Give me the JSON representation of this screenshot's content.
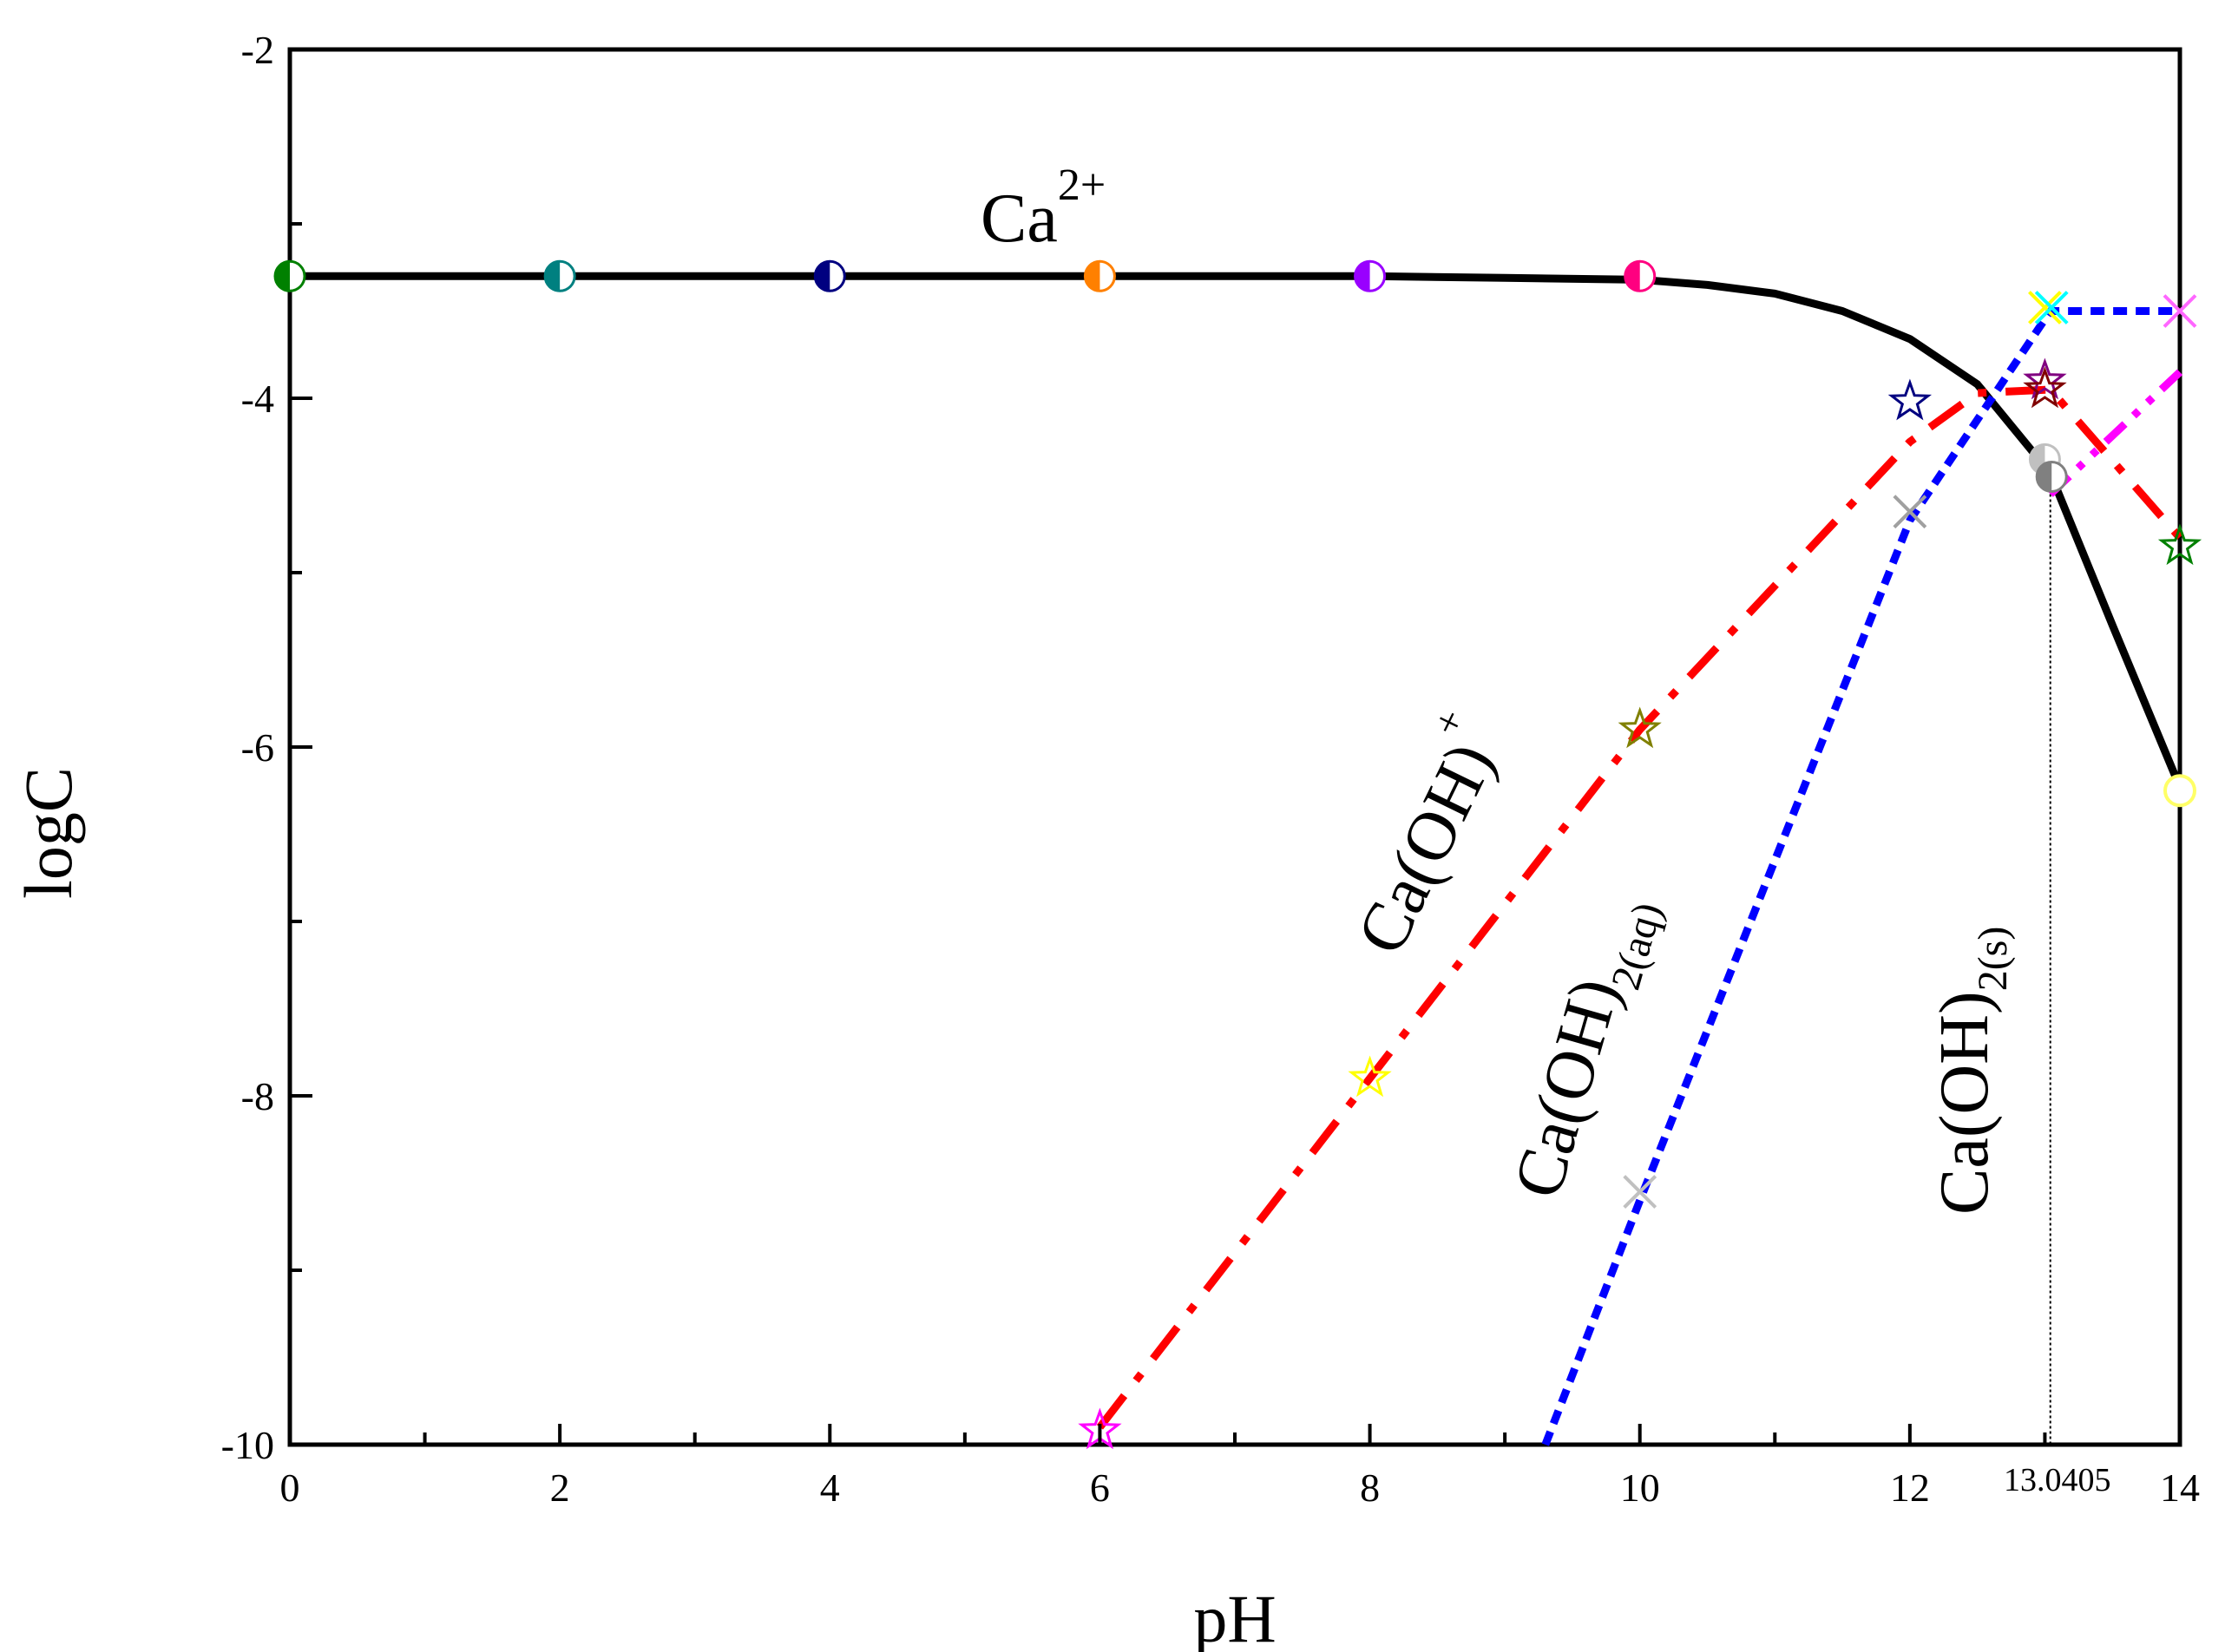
{
  "chart_data": {
    "type": "line",
    "title": "",
    "xlabel": "pH",
    "ylabel": "logC",
    "xlim": [
      0,
      14
    ],
    "ylim": [
      -10,
      -2
    ],
    "x_ticks": [
      "0",
      "2",
      "4",
      "6",
      "8",
      "10",
      "12",
      "14"
    ],
    "y_ticks": [
      "-2",
      "-4",
      "-6",
      "-8",
      "-10"
    ],
    "annotations": {
      "vline_x": 13.0405,
      "vline_label": "13.0405"
    },
    "species_labels": {
      "ca2": {
        "base": "Ca",
        "sup": "2+"
      },
      "caoh": {
        "base": "Ca(OH)",
        "sup": "+"
      },
      "caoh2aq": {
        "base": "Ca(OH)",
        "sub": "2(aq)"
      },
      "caoh2s": {
        "base": "Ca(OH)",
        "sub": "2(s)"
      }
    },
    "series": [
      {
        "name": "Ca2+",
        "style": "solid",
        "color": "#000000",
        "x": [
          0,
          1,
          2,
          3,
          4,
          5,
          6,
          7,
          8,
          9,
          10,
          10.5,
          11,
          11.5,
          12,
          12.5,
          13.0405,
          13.5,
          14
        ],
        "y": [
          -3.3,
          -3.3,
          -3.3,
          -3.3,
          -3.3,
          -3.3,
          -3.3,
          -3.3,
          -3.3,
          -3.31,
          -3.32,
          -3.35,
          -3.4,
          -3.5,
          -3.66,
          -3.92,
          -4.43,
          -5.3,
          -6.23
        ]
      },
      {
        "name": "Ca(OH)+",
        "style": "dashdot",
        "color": "#ff0000",
        "x": [
          6,
          8,
          10,
          12,
          12.5,
          13.0405,
          14
        ],
        "y": [
          -9.9,
          -7.9,
          -5.9,
          -4.25,
          -3.97,
          -3.95,
          -4.8
        ]
      },
      {
        "name": "Ca(OH)2(aq)",
        "style": "dotted",
        "color": "#0000ff",
        "x": [
          9.3,
          10,
          12,
          13.0405,
          14
        ],
        "y": [
          -10.0,
          -8.6,
          -4.7,
          -3.5,
          -3.5
        ]
      },
      {
        "name": "Ca(OH)2(s)",
        "style": "dashdotdot",
        "color": "#ff00ff",
        "x": [
          13.0405,
          14
        ],
        "y": [
          -4.55,
          -3.85
        ]
      }
    ],
    "markers": [
      {
        "x": 0,
        "y": -3.3,
        "shape": "half-circle",
        "color": "#008000"
      },
      {
        "x": 2,
        "y": -3.3,
        "shape": "half-circle",
        "color": "#008080"
      },
      {
        "x": 4,
        "y": -3.3,
        "shape": "half-circle",
        "color": "#000080"
      },
      {
        "x": 6,
        "y": -3.3,
        "shape": "half-circle",
        "color": "#ff8000"
      },
      {
        "x": 8,
        "y": -3.3,
        "shape": "half-circle",
        "color": "#9900ff"
      },
      {
        "x": 10,
        "y": -3.3,
        "shape": "half-circle",
        "color": "#ff0080"
      },
      {
        "x": 13,
        "y": -4.35,
        "shape": "half-circle",
        "color": "#c0c0c0"
      },
      {
        "x": 13.05,
        "y": -4.45,
        "shape": "half-circle",
        "color": "#808080"
      },
      {
        "x": 14,
        "y": -6.25,
        "shape": "circle",
        "color": "#ffff66"
      },
      {
        "x": 6,
        "y": -9.92,
        "shape": "star",
        "color": "#ff00ff"
      },
      {
        "x": 8,
        "y": -7.9,
        "shape": "star",
        "color": "#ffff00"
      },
      {
        "x": 10,
        "y": -5.9,
        "shape": "star",
        "color": "#808000"
      },
      {
        "x": 12,
        "y": -4.02,
        "shape": "star",
        "color": "#000080"
      },
      {
        "x": 13,
        "y": -3.9,
        "shape": "star",
        "color": "#800080"
      },
      {
        "x": 13,
        "y": -3.95,
        "shape": "star",
        "color": "#800000"
      },
      {
        "x": 14,
        "y": -4.85,
        "shape": "star",
        "color": "#008000"
      },
      {
        "x": 10,
        "y": -8.55,
        "shape": "cross",
        "color": "#c0c0c0"
      },
      {
        "x": 12,
        "y": -4.65,
        "shape": "cross",
        "color": "#a0a0a0"
      },
      {
        "x": 13,
        "y": -3.48,
        "shape": "cross",
        "color": "#ffff00"
      },
      {
        "x": 13.05,
        "y": -3.48,
        "shape": "cross",
        "color": "#00ffff"
      },
      {
        "x": 14,
        "y": -3.5,
        "shape": "cross",
        "color": "#ff66ff"
      }
    ]
  }
}
